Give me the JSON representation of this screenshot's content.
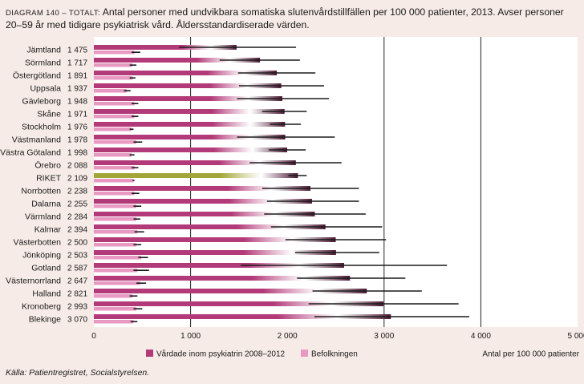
{
  "title": {
    "label": "DIAGRAM 140 – TOTALT:",
    "text": "Antal personer med undvikbara somatiska slutenvårdstillfällen per 100 000 patienter, 2013. Avser personer 20–59 år med tidigare psykiatrisk vård. Åldersstandardiserade värden."
  },
  "source": "Källa: Patientregistret, Socialstyrelsen.",
  "chart_data": {
    "type": "bar",
    "orientation": "horizontal",
    "xlim": [
      0,
      5000
    ],
    "xticks": [
      "0",
      "1 000",
      "2 000",
      "3 000",
      "4 000",
      "5 000"
    ],
    "xtick_values": [
      0,
      1000,
      2000,
      3000,
      4000,
      5000
    ],
    "xlabel": "Antal per 100 000 patienter",
    "gridlines": [
      1000,
      3000,
      4000
    ],
    "categories": [
      "Jämtland",
      "Sörmland",
      "Östergötland",
      "Uppsala",
      "Gävleborg",
      "Skåne",
      "Stockholm",
      "Västmanland",
      "Västra Götaland",
      "Örebro",
      "RIKET",
      "Norrbotten",
      "Dalarna",
      "Värmland",
      "Kalmar",
      "Västerbotten",
      "Jönköping",
      "Gotland",
      "Västernorrland",
      "Halland",
      "Kronoberg",
      "Blekinge"
    ],
    "value_labels": [
      "1 475",
      "1 717",
      "1 891",
      "1 937",
      "1 948",
      "1 971",
      "1 976",
      "1 978",
      "1 998",
      "2 088",
      "2 109",
      "2 238",
      "2 255",
      "2 284",
      "2 394",
      "2 500",
      "2 503",
      "2 587",
      "2 647",
      "2 821",
      "2 993",
      "3 070"
    ],
    "highlight": "RIKET",
    "colors": {
      "psyk": "#b23a78",
      "pop": "#e899c2",
      "riket": "#a2a637",
      "error": "#1a1a1a"
    },
    "series": [
      {
        "name": "Vårdade inom psykiatrin 2008–2012",
        "values": [
          1475,
          1717,
          1891,
          1937,
          1948,
          1971,
          1976,
          1978,
          1998,
          2088,
          2109,
          2238,
          2255,
          2284,
          2394,
          2500,
          2503,
          2587,
          2647,
          2821,
          2993,
          3070
        ],
        "ci_low": [
          880,
          1300,
          1490,
          1500,
          1480,
          1740,
          1820,
          1480,
          1810,
          1610,
          2010,
          1740,
          1790,
          1760,
          1830,
          1980,
          2080,
          1520,
          2100,
          2260,
          2220,
          2280
        ],
        "ci_high": [
          2090,
          2130,
          2290,
          2380,
          2430,
          2200,
          2140,
          2490,
          2190,
          2560,
          2200,
          2740,
          2740,
          2810,
          2980,
          3020,
          2950,
          3650,
          3220,
          3390,
          3770,
          3880
        ]
      },
      {
        "name": "Befolkningen",
        "values": [
          420,
          400,
          400,
          340,
          420,
          420,
          390,
          440,
          390,
          420,
          410,
          420,
          440,
          440,
          450,
          440,
          490,
          450,
          480,
          400,
          440,
          410
        ],
        "ci_low": [
          390,
          370,
          370,
          310,
          390,
          390,
          370,
          410,
          370,
          390,
          400,
          390,
          410,
          410,
          420,
          410,
          460,
          410,
          440,
          370,
          410,
          380
        ],
        "ci_high": [
          480,
          440,
          430,
          380,
          460,
          460,
          410,
          500,
          420,
          460,
          420,
          470,
          490,
          480,
          520,
          490,
          560,
          570,
          540,
          450,
          500,
          450
        ]
      }
    ]
  }
}
